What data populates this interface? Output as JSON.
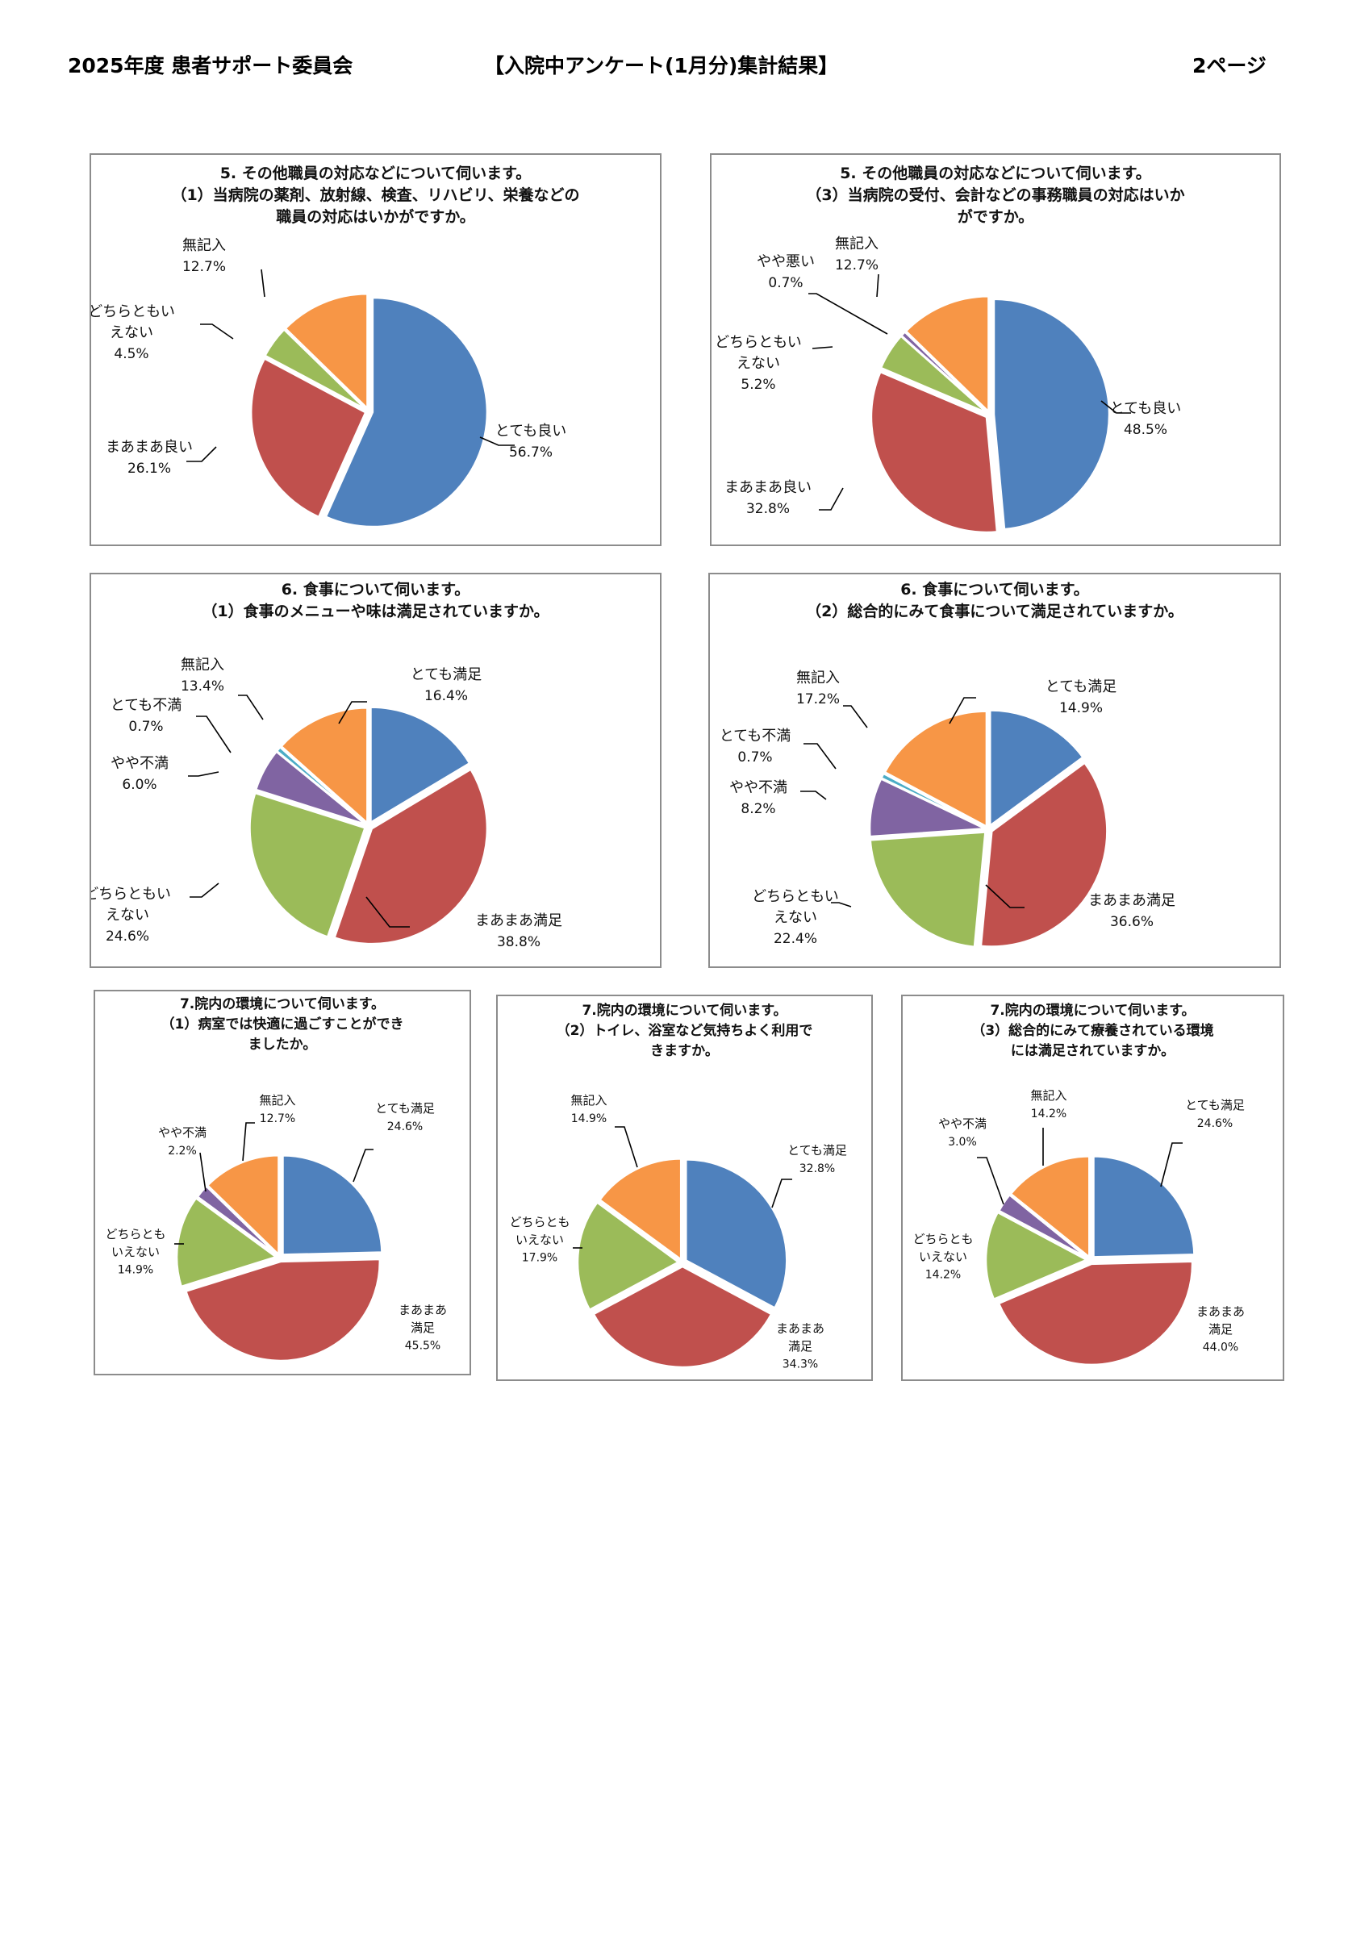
{
  "header": {
    "left": "2025年度 患者サポート委員会",
    "center": "【入院中アンケート(1月分)集計結果】",
    "page": "2ページ"
  },
  "colors": {
    "blue": "#4f81bd",
    "red": "#c0504d",
    "green": "#9bbb59",
    "purple": "#8064a2",
    "cyan": "#4bacc6",
    "orange": "#f79646",
    "border": "#8c8c8c"
  },
  "chart_data": [
    {
      "id": "q5-1",
      "type": "pie",
      "title": "5. その他職員の対応などについて伺います。\n（1）当病院の薬剤、放射線、検査、リハビリ、栄養などの\n職員の対応はいかがですか。",
      "slices": [
        {
          "label": "とても良い",
          "value": 56.7,
          "display": "56.7%",
          "color": "#4f81bd"
        },
        {
          "label": "まあまあ良い",
          "value": 26.1,
          "display": "26.1%",
          "color": "#c0504d"
        },
        {
          "label": "どちらともいえない",
          "value": 4.5,
          "display": "4.5%",
          "color": "#9bbb59"
        },
        {
          "label": "無記入",
          "value": 12.7,
          "display": "12.7%",
          "color": "#f79646"
        }
      ]
    },
    {
      "id": "q5-3",
      "type": "pie",
      "title": "5. その他職員の対応などについて伺います。\n（3）当病院の受付、会計などの事務職員の対応はいか\nがですか。",
      "slices": [
        {
          "label": "とても良い",
          "value": 48.5,
          "display": "48.5%",
          "color": "#4f81bd"
        },
        {
          "label": "まあまあ良い",
          "value": 32.8,
          "display": "32.8%",
          "color": "#c0504d"
        },
        {
          "label": "どちらともいえない",
          "value": 5.2,
          "display": "5.2%",
          "color": "#9bbb59"
        },
        {
          "label": "やや悪い",
          "value": 0.7,
          "display": "0.7%",
          "color": "#8064a2"
        },
        {
          "label": "無記入",
          "value": 12.7,
          "display": "12.7%",
          "color": "#f79646"
        }
      ]
    },
    {
      "id": "q6-1",
      "type": "pie",
      "title": "6. 食事について伺います。\n（1）食事のメニューや味は満足されていますか。",
      "slices": [
        {
          "label": "とても満足",
          "value": 16.4,
          "display": "16.4%",
          "color": "#4f81bd"
        },
        {
          "label": "まあまあ満足",
          "value": 38.8,
          "display": "38.8%",
          "color": "#c0504d"
        },
        {
          "label": "どちらともいえない",
          "value": 24.6,
          "display": "24.6%",
          "color": "#9bbb59"
        },
        {
          "label": "やや不満",
          "value": 6.0,
          "display": "6.0%",
          "color": "#8064a2"
        },
        {
          "label": "とても不満",
          "value": 0.7,
          "display": "0.7%",
          "color": "#4bacc6"
        },
        {
          "label": "無記入",
          "value": 13.4,
          "display": "13.4%",
          "color": "#f79646"
        }
      ]
    },
    {
      "id": "q6-2",
      "type": "pie",
      "title": "6. 食事について伺います。\n（2）総合的にみて食事について満足されていますか。",
      "slices": [
        {
          "label": "とても満足",
          "value": 14.9,
          "display": "14.9%",
          "color": "#4f81bd"
        },
        {
          "label": "まあまあ満足",
          "value": 36.6,
          "display": "36.6%",
          "color": "#c0504d"
        },
        {
          "label": "どちらともいえない",
          "value": 22.4,
          "display": "22.4%",
          "color": "#9bbb59"
        },
        {
          "label": "やや不満",
          "value": 8.2,
          "display": "8.2%",
          "color": "#8064a2"
        },
        {
          "label": "とても不満",
          "value": 0.7,
          "display": "0.7%",
          "color": "#4bacc6"
        },
        {
          "label": "無記入",
          "value": 17.2,
          "display": "17.2%",
          "color": "#f79646"
        }
      ]
    },
    {
      "id": "q7-1",
      "type": "pie",
      "title": "7.院内の環境について伺います。\n（1）病室では快適に過ごすことができ\nましたか。",
      "slices": [
        {
          "label": "とても満足",
          "value": 24.6,
          "display": "24.6%",
          "color": "#4f81bd"
        },
        {
          "label": "まあまあ満足",
          "value": 45.5,
          "display": "45.5%",
          "color": "#c0504d"
        },
        {
          "label": "どちらともいえない",
          "value": 14.9,
          "display": "14.9%",
          "color": "#9bbb59"
        },
        {
          "label": "やや不満",
          "value": 2.2,
          "display": "2.2%",
          "color": "#8064a2"
        },
        {
          "label": "無記入",
          "value": 12.7,
          "display": "12.7%",
          "color": "#f79646"
        }
      ]
    },
    {
      "id": "q7-2",
      "type": "pie",
      "title": "7.院内の環境について伺います。\n（2）トイレ、浴室など気持ちよく利用で\nきますか。",
      "slices": [
        {
          "label": "とても満足",
          "value": 32.8,
          "display": "32.8%",
          "color": "#4f81bd"
        },
        {
          "label": "まあまあ満足",
          "value": 34.3,
          "display": "34.3%",
          "color": "#c0504d"
        },
        {
          "label": "どちらともいえない",
          "value": 17.9,
          "display": "17.9%",
          "color": "#9bbb59"
        },
        {
          "label": "無記入",
          "value": 14.9,
          "display": "14.9%",
          "color": "#f79646"
        }
      ]
    },
    {
      "id": "q7-3",
      "type": "pie",
      "title": "7.院内の環境について伺います。\n（3）総合的にみて療養されている環境\nには満足されていますか。",
      "slices": [
        {
          "label": "とても満足",
          "value": 24.6,
          "display": "24.6%",
          "color": "#4f81bd"
        },
        {
          "label": "まあまあ満足",
          "value": 44.0,
          "display": "44.0%",
          "color": "#c0504d"
        },
        {
          "label": "どちらともいえない",
          "value": 14.2,
          "display": "14.2%",
          "color": "#9bbb59"
        },
        {
          "label": "やや不満",
          "value": 3.0,
          "display": "3.0%",
          "color": "#8064a2"
        },
        {
          "label": "無記入",
          "value": 14.2,
          "display": "14.2%",
          "color": "#f79646"
        }
      ]
    }
  ]
}
